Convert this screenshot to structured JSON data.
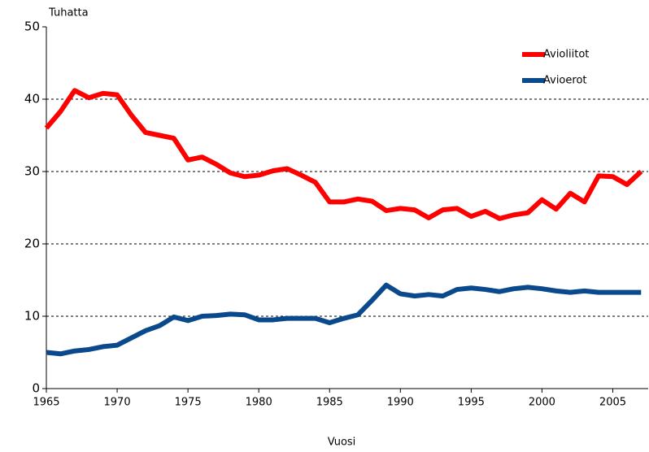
{
  "chart_data": {
    "type": "line",
    "y_axis_label": "Tuhatta",
    "x_axis_label": "Vuosi",
    "x": [
      1965,
      1966,
      1967,
      1968,
      1969,
      1970,
      1971,
      1972,
      1973,
      1974,
      1975,
      1976,
      1977,
      1978,
      1979,
      1980,
      1981,
      1982,
      1983,
      1984,
      1985,
      1986,
      1987,
      1988,
      1989,
      1990,
      1991,
      1992,
      1993,
      1994,
      1995,
      1996,
      1997,
      1998,
      1999,
      2000,
      2001,
      2002,
      2003,
      2004,
      2005,
      2006,
      2007
    ],
    "series": [
      {
        "name": "Avioliitot",
        "color": "#ff0000",
        "values": [
          36.0,
          38.3,
          41.2,
          40.2,
          40.8,
          40.6,
          37.8,
          35.4,
          35.0,
          34.6,
          31.6,
          32.0,
          31.0,
          29.8,
          29.3,
          29.5,
          30.1,
          30.4,
          29.5,
          28.5,
          25.8,
          25.8,
          26.2,
          25.9,
          24.6,
          24.9,
          24.7,
          23.6,
          24.7,
          24.9,
          23.8,
          24.5,
          23.5,
          24.0,
          24.3,
          26.1,
          24.8,
          27.0,
          25.8,
          29.4,
          29.3,
          28.2,
          30.0
        ]
      },
      {
        "name": "Avioerot",
        "color": "#0a4a8c",
        "values": [
          5.0,
          4.8,
          5.2,
          5.4,
          5.8,
          6.0,
          7.0,
          8.0,
          8.7,
          9.9,
          9.4,
          10.0,
          10.1,
          10.3,
          10.2,
          9.5,
          9.5,
          9.7,
          9.7,
          9.7,
          9.1,
          9.7,
          10.2,
          12.2,
          14.3,
          13.1,
          12.8,
          13.0,
          12.8,
          13.7,
          13.9,
          13.7,
          13.4,
          13.8,
          14.0,
          13.8,
          13.5,
          13.3,
          13.5,
          13.3,
          13.3,
          13.3,
          13.3
        ]
      }
    ],
    "xlim": [
      1965,
      2007.5
    ],
    "xticks": [
      1965,
      1970,
      1975,
      1980,
      1985,
      1990,
      1995,
      2000,
      2005
    ],
    "ylim": [
      0,
      50
    ],
    "yticks": [
      0,
      10,
      20,
      30,
      40,
      50
    ],
    "grid": true,
    "legend": "upper right"
  }
}
